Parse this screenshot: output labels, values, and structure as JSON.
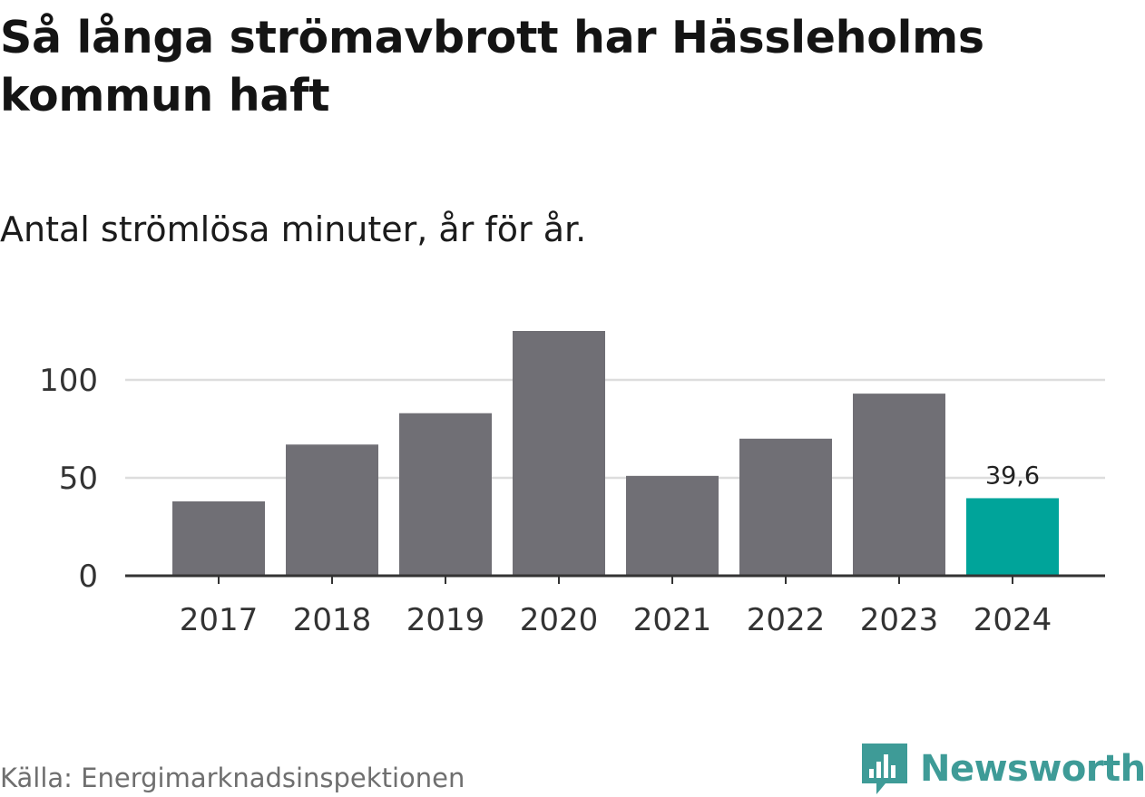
{
  "title": "Så långa strömavbrott har Hässleholms kommun haft",
  "subtitle": "Antal strömlösa minuter, år för år.",
  "source": "Källa: Energimarknadsinspektionen",
  "brand": {
    "name": "Newsworthy",
    "icon": "newsworthy-logo-icon"
  },
  "colors": {
    "bar": "#706f75",
    "highlight": "#00a49a",
    "grid": "#dddddd",
    "axis": "#333333"
  },
  "chart_data": {
    "type": "bar",
    "title": "Så långa strömavbrott har Hässleholms kommun haft",
    "subtitle": "Antal strömlösa minuter, år för år.",
    "xlabel": "",
    "ylabel": "",
    "categories": [
      "2017",
      "2018",
      "2019",
      "2020",
      "2021",
      "2022",
      "2023",
      "2024"
    ],
    "values": [
      38,
      67,
      83,
      125,
      51,
      70,
      93,
      39.6
    ],
    "highlight_index": 7,
    "data_labels": [
      {
        "index": 7,
        "text": "39,6"
      }
    ],
    "ylim": [
      0,
      125
    ],
    "yticks": [
      0,
      50,
      100
    ],
    "ytick_labels": [
      "0",
      "50",
      "100"
    ],
    "grid": true
  }
}
